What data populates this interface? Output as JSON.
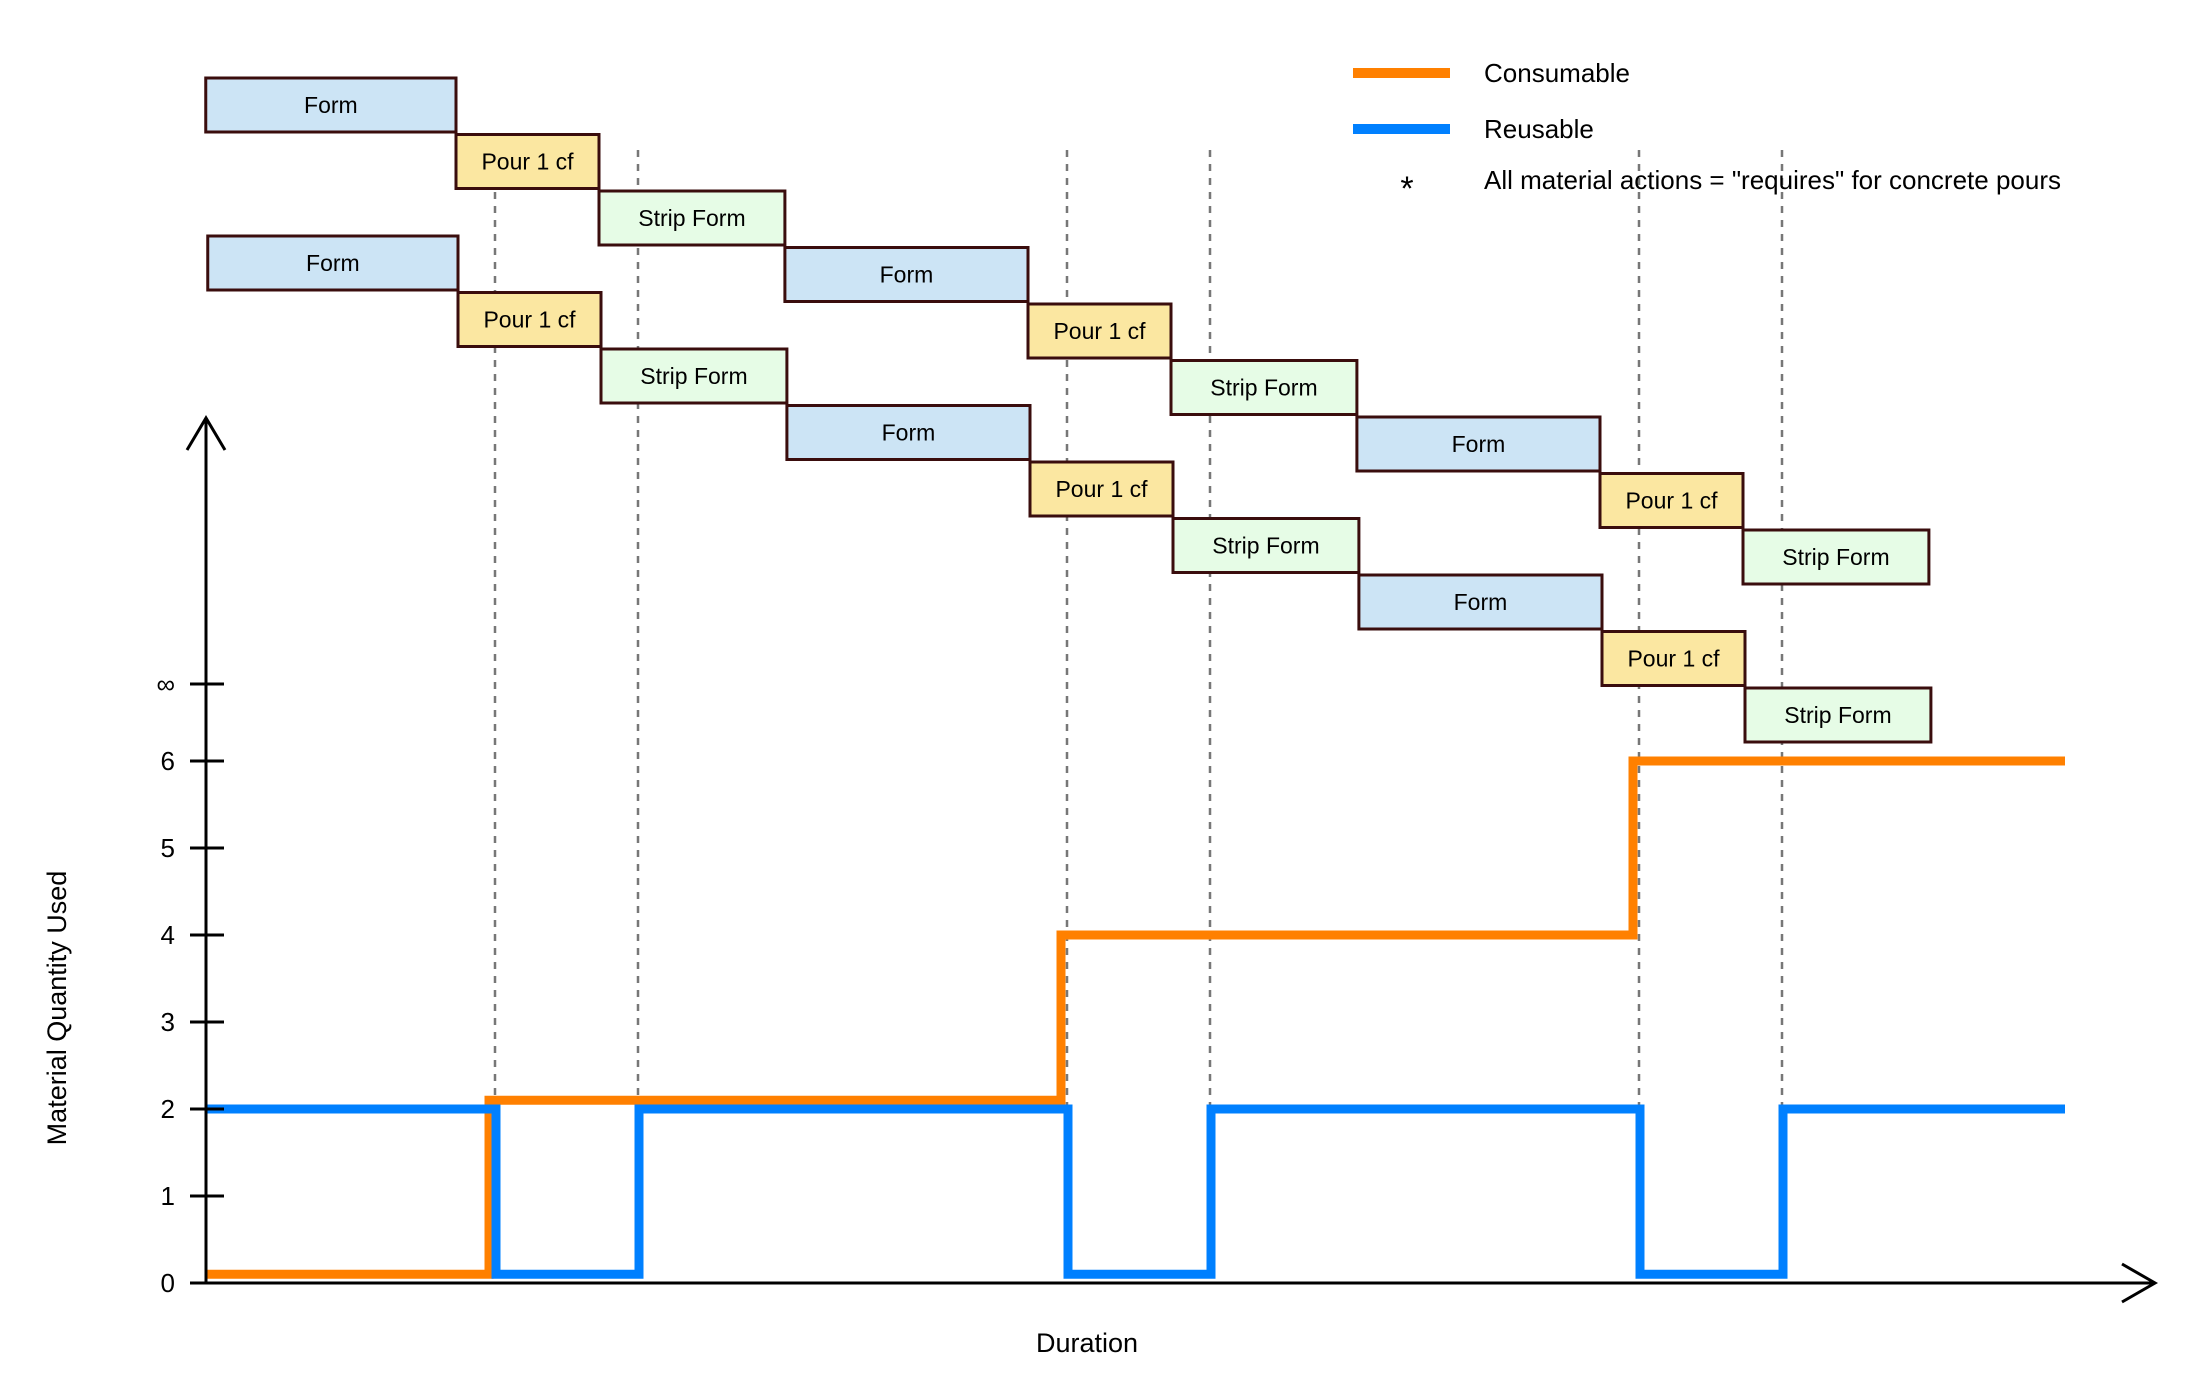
{
  "chart_data": {
    "type": "line",
    "xlabel": "Duration",
    "ylabel": "Material Quantity Used",
    "ylim": [
      0,
      6
    ],
    "y_ticks": [
      "0",
      "1",
      "2",
      "3",
      "4",
      "5",
      "6",
      "∞"
    ],
    "x_events": [
      0,
      2,
      3,
      6,
      7,
      10,
      11,
      13
    ],
    "series": [
      {
        "name": "Consumable",
        "color": "#ff8000",
        "steps": [
          [
            0,
            0.1
          ],
          [
            2,
            2.1
          ],
          [
            6,
            4
          ],
          [
            10,
            6
          ],
          [
            13,
            6
          ]
        ]
      },
      {
        "name": "Reusable",
        "color": "#0080ff",
        "steps": [
          [
            0,
            2
          ],
          [
            2,
            0.1
          ],
          [
            3,
            2
          ],
          [
            6,
            0.1
          ],
          [
            7,
            2
          ],
          [
            10,
            0.1
          ],
          [
            11,
            2
          ],
          [
            13,
            2
          ]
        ]
      }
    ],
    "legend": {
      "position": "top-right",
      "note_symbol": "*",
      "note": "All material actions = \"requires\" for concrete pours"
    },
    "task_colors": {
      "Form": "#cce4f5",
      "Pour 1 cf": "#fbe7a1",
      "Strip Form": "#e6fce6"
    },
    "tasks": [
      {
        "label": "Form",
        "row": 0,
        "start": 0.25,
        "end": 2
      },
      {
        "label": "Pour 1 cf",
        "row": 1,
        "start": 2,
        "end": 3
      },
      {
        "label": "Strip Form",
        "row": 2,
        "start": 3,
        "end": 4.3
      },
      {
        "label": "Form",
        "row": 0,
        "start": 0.25,
        "end": 2,
        "group": 2
      },
      {
        "label": "Pour 1 cf",
        "row": 1,
        "start": 2,
        "end": 3,
        "group": 2
      },
      {
        "label": "Strip Form",
        "row": 2,
        "start": 3,
        "end": 4.3,
        "group": 2
      },
      {
        "label": "Form",
        "row": 3,
        "start": 4.3,
        "end": 6
      },
      {
        "label": "Pour 1 cf",
        "row": 4,
        "start": 6,
        "end": 7
      },
      {
        "label": "Strip Form",
        "row": 5,
        "start": 7,
        "end": 8.3
      },
      {
        "label": "Form",
        "row": 3,
        "start": 4.3,
        "end": 6,
        "group": 2
      },
      {
        "label": "Pour 1 cf",
        "row": 4,
        "start": 6,
        "end": 7,
        "group": 2
      },
      {
        "label": "Strip Form",
        "row": 5,
        "start": 7,
        "end": 8.3,
        "group": 2
      },
      {
        "label": "Form",
        "row": 6,
        "start": 8.3,
        "end": 10
      },
      {
        "label": "Pour 1 cf",
        "row": 7,
        "start": 10,
        "end": 11
      },
      {
        "label": "Strip Form",
        "row": 8,
        "start": 11,
        "end": 12.3
      },
      {
        "label": "Form",
        "row": 6,
        "start": 8.3,
        "end": 10,
        "group": 2
      },
      {
        "label": "Pour 1 cf",
        "row": 7,
        "start": 10,
        "end": 11,
        "group": 2
      },
      {
        "label": "Strip Form",
        "row": 8,
        "start": 11,
        "end": 12.3,
        "group": 2
      }
    ]
  }
}
